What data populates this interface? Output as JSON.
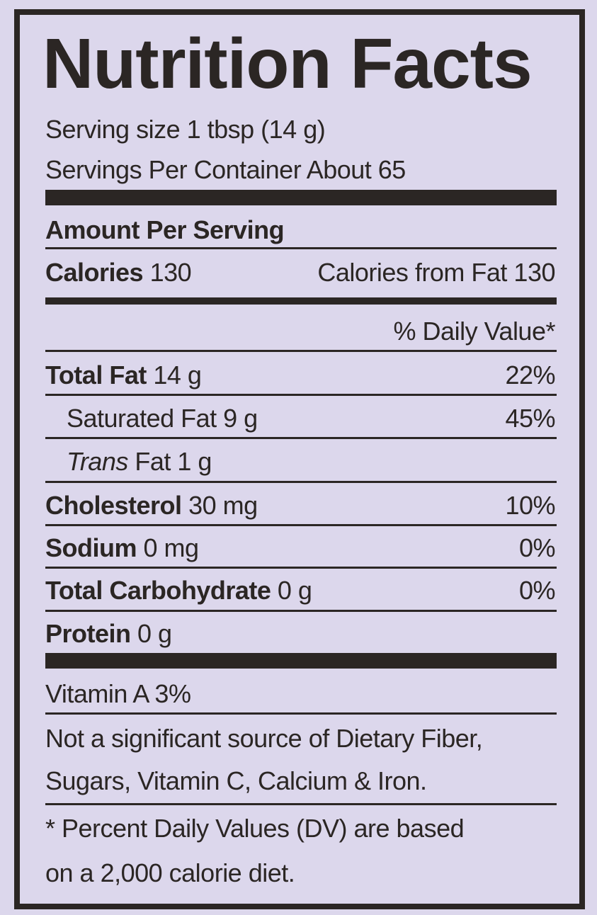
{
  "title": "Nutrition Facts",
  "serving_size": "Serving size 1 tbsp (14 g)",
  "servings_per_container": "Servings Per Container About 65",
  "amount_per_serving": "Amount Per Serving",
  "calories": {
    "label": "Calories",
    "value": "130",
    "from_fat": "Calories from Fat 130"
  },
  "dv_header": "% Daily Value*",
  "nutrients": [
    {
      "label": "Total Fat",
      "amount": "14 g",
      "dv": "22%"
    },
    {
      "label": "Saturated Fat 9 g",
      "dv": "45%"
    },
    {
      "label_italic": "Trans",
      "label": "Fat 1 g"
    },
    {
      "label": "Cholesterol",
      "amount": "30 mg",
      "dv": "10%"
    },
    {
      "label": "Sodium",
      "amount": "0 mg",
      "dv": "0%"
    },
    {
      "label": "Total Carbohydrate",
      "amount": "0 g",
      "dv": "0%"
    },
    {
      "label": "Protein",
      "amount": "0 g"
    }
  ],
  "vitamin_a": "Vitamin A 3%",
  "not_significant": [
    "Not a significant source of Dietary Fiber,",
    "Sugars, Vitamin C, Calcium & Iron."
  ],
  "footnote": [
    "* Percent Daily Values (DV) are based",
    "on a 2,000 calorie diet."
  ]
}
